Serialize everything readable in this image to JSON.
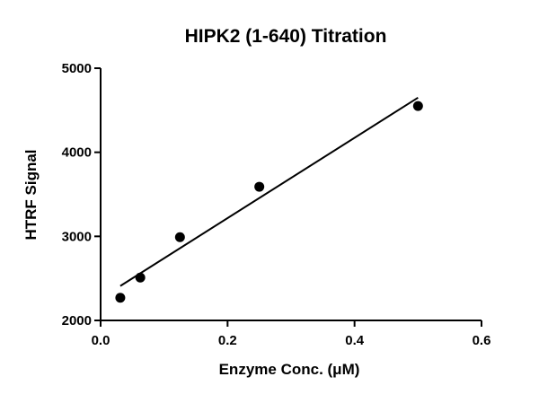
{
  "chart_data": {
    "type": "scatter",
    "title": "HIPK2 (1-640) Titration",
    "xlabel": "Enzyme Conc. (μM)",
    "ylabel": "HTRF Signal",
    "xlim": [
      0.0,
      0.6
    ],
    "ylim": [
      2000,
      5000
    ],
    "x_ticks": [
      0.0,
      0.2,
      0.4,
      0.6
    ],
    "x_tick_labels": [
      "0.0",
      "0.2",
      "0.4",
      "0.6"
    ],
    "y_ticks": [
      2000,
      3000,
      4000,
      5000
    ],
    "y_tick_labels": [
      "2000",
      "3000",
      "4000",
      "5000"
    ],
    "grid": false,
    "series": [
      {
        "points": [
          {
            "x": 0.031,
            "y": 2270
          },
          {
            "x": 0.0625,
            "y": 2510
          },
          {
            "x": 0.125,
            "y": 2990
          },
          {
            "x": 0.25,
            "y": 3590
          },
          {
            "x": 0.5,
            "y": 4550
          }
        ],
        "color": "#000000"
      }
    ],
    "fit_line": {
      "type": "linear",
      "x_start": 0.031,
      "x_end": 0.5,
      "y_start": 2410,
      "y_end": 4650,
      "color": "#000000"
    }
  }
}
